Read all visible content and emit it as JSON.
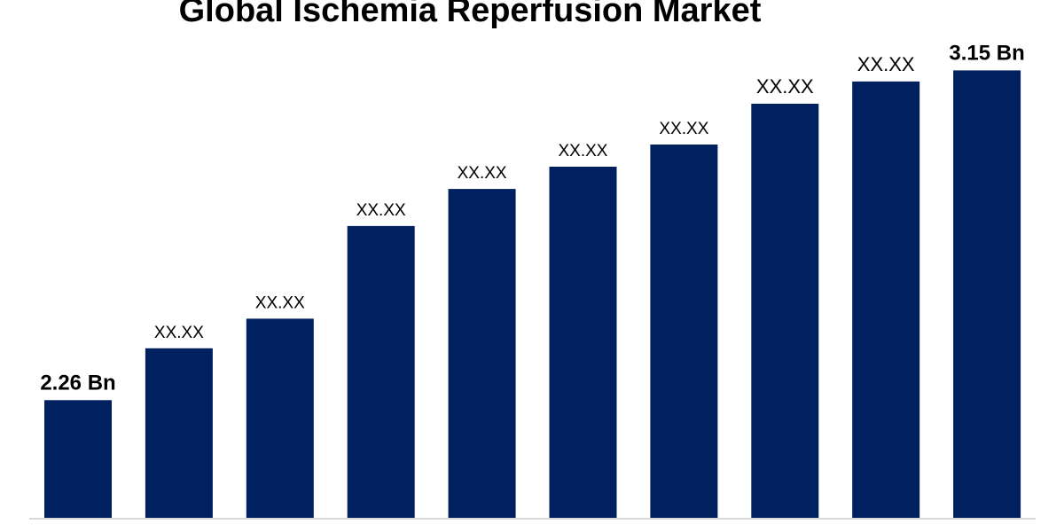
{
  "chart_data": {
    "type": "bar",
    "title": "Global Ischemia Reperfusion Market",
    "values": [
      2.26,
      2.4,
      2.48,
      2.73,
      2.83,
      2.89,
      2.95,
      3.06,
      3.12,
      3.15
    ],
    "data_labels": [
      "2.26 Bn",
      "XX.XX",
      "XX.XX",
      "XX.XX",
      "XX.XX",
      "XX.XX",
      "XX.XX",
      "XX.XX",
      "XX.XX",
      "3.15 Bn"
    ],
    "ylim": [
      1.94,
      3.34
    ],
    "bar_color": "#002060",
    "grid": false,
    "legend": "none"
  }
}
